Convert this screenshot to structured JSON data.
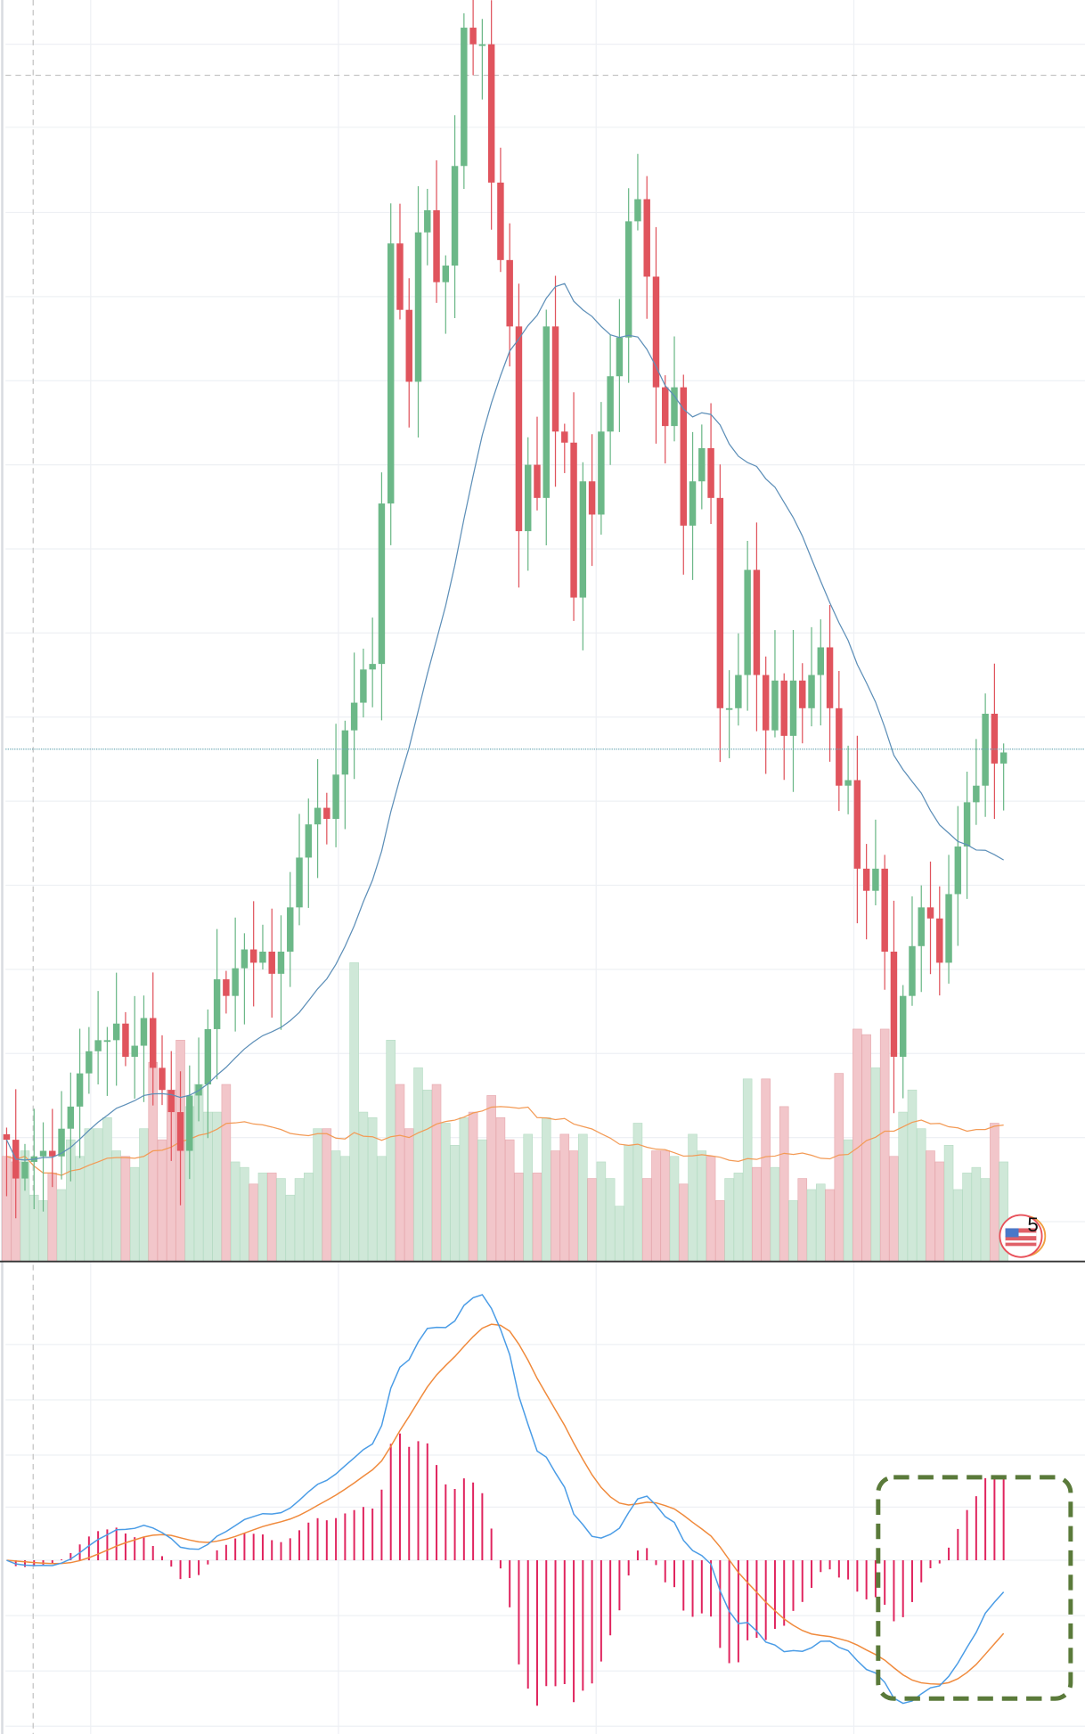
{
  "chart_data": {
    "type": "candlestick",
    "title": "",
    "xlabel": "",
    "ylabel": "",
    "grid": true,
    "closes": [
      110,
      75,
      90,
      95,
      100,
      95,
      120,
      140,
      170,
      190,
      200,
      200,
      215,
      185,
      195,
      220,
      175,
      155,
      135,
      100,
      150,
      160,
      210,
      255,
      240,
      265,
      282,
      270,
      280,
      260,
      280,
      320,
      365,
      395,
      410,
      400,
      440,
      480,
      505,
      535,
      540,
      685,
      920,
      860,
      795,
      930,
      950,
      885,
      900,
      990,
      1115,
      1100,
      1100,
      975,
      905,
      845,
      660,
      720,
      690,
      845,
      750,
      740,
      600,
      705,
      675,
      750,
      800,
      835,
      940,
      960,
      890,
      790,
      755,
      790,
      665,
      705,
      735,
      690,
      500,
      500,
      530,
      625,
      530,
      480,
      525,
      475,
      525,
      500,
      530,
      555,
      500,
      430,
      435,
      355,
      335,
      355,
      280,
      185,
      240,
      285,
      320,
      310,
      270,
      332,
      375,
      415,
      430,
      495,
      450,
      460
    ],
    "volumes": [
      95,
      90,
      100,
      60,
      55,
      80,
      65,
      110,
      95,
      120,
      120,
      130,
      100,
      95,
      85,
      120,
      180,
      110,
      155,
      200,
      140,
      160,
      135,
      135,
      160,
      90,
      85,
      70,
      80,
      80,
      75,
      60,
      75,
      80,
      120,
      120,
      100,
      95,
      270,
      135,
      130,
      95,
      200,
      160,
      120,
      175,
      155,
      160,
      125,
      105,
      130,
      135,
      110,
      150,
      130,
      110,
      80,
      115,
      80,
      130,
      100,
      115,
      100,
      115,
      75,
      90,
      75,
      50,
      105,
      125,
      75,
      100,
      100,
      95,
      70,
      115,
      100,
      95,
      55,
      75,
      80,
      165,
      85,
      165,
      85,
      140,
      55,
      75,
      65,
      70,
      65,
      170,
      110,
      210,
      205,
      175,
      210,
      95,
      135,
      155,
      120,
      100,
      90,
      105,
      65,
      80,
      85,
      75,
      125,
      90
    ],
    "volume_ma_label": "",
    "series": [
      {
        "name": "price-ma",
        "color": "#5d8fb8"
      },
      {
        "name": "volume-ma",
        "color": "#f39a55"
      },
      {
        "name": "macd-dif",
        "color": "#4a9ce6"
      },
      {
        "name": "macd-dea",
        "color": "#f08a3c"
      },
      {
        "name": "macd-histogram",
        "color": "#e0245e"
      }
    ],
    "colors": {
      "up": "#6cb888",
      "down": "#e0545d",
      "up_volume": "#cfe8d8",
      "down_volume": "#f2c6ca"
    }
  },
  "badge": {
    "number": "5"
  }
}
